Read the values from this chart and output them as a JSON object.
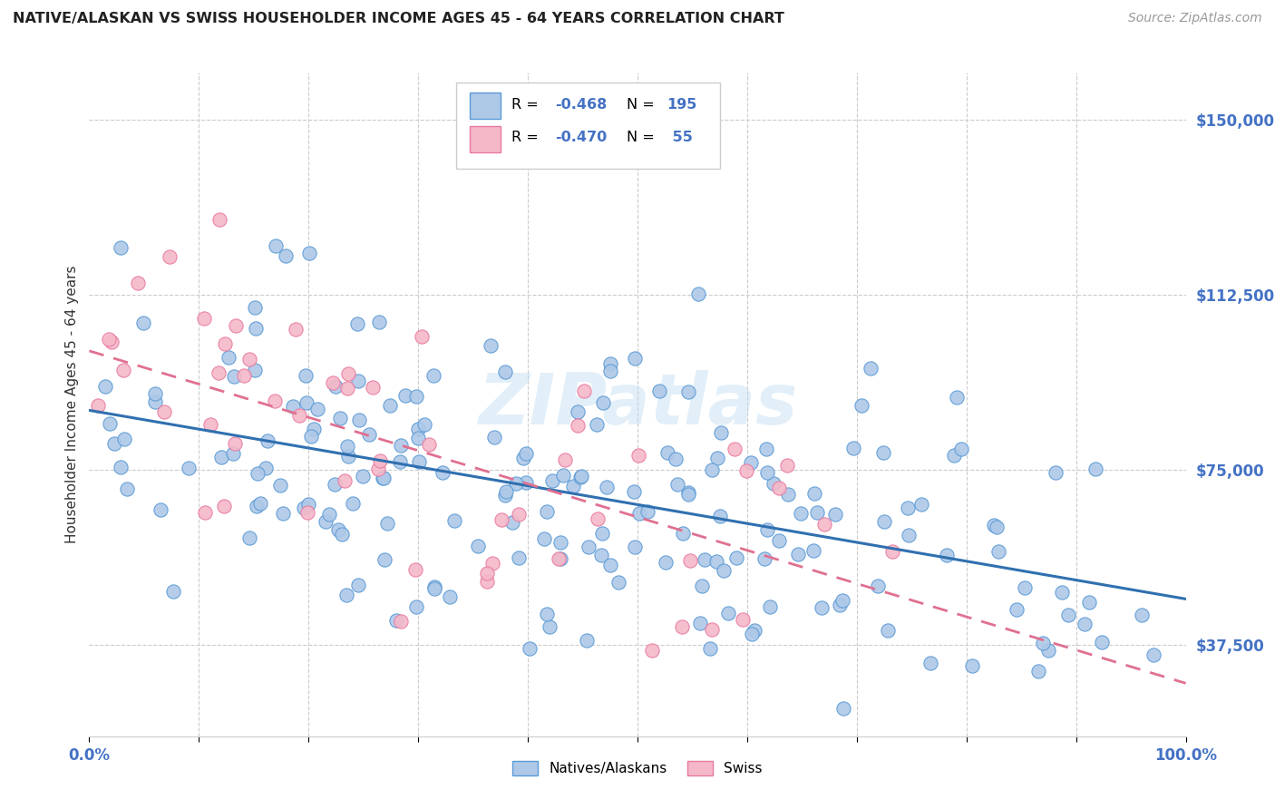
{
  "title": "NATIVE/ALASKAN VS SWISS HOUSEHOLDER INCOME AGES 45 - 64 YEARS CORRELATION CHART",
  "source": "Source: ZipAtlas.com",
  "ylabel": "Householder Income Ages 45 - 64 years",
  "ytick_labels": [
    "$37,500",
    "$75,000",
    "$112,500",
    "$150,000"
  ],
  "ytick_values": [
    37500,
    75000,
    112500,
    150000
  ],
  "ylim": [
    18000,
    160000
  ],
  "xlim": [
    0.0,
    1.0
  ],
  "watermark": "ZIPatlas",
  "blue_color": "#aec8e8",
  "blue_edge_color": "#5b9bd5",
  "blue_line_color": "#3070b0",
  "pink_color": "#f5b8c8",
  "pink_edge_color": "#e87aa0",
  "pink_line_color": "#e07090",
  "grid_color": "#cccccc",
  "title_color": "#222222",
  "ylabel_color": "#333333",
  "tick_color": "#4472c4",
  "source_color": "#999999",
  "legend_r_color": "#4472c4",
  "n_blue": 195,
  "n_pink": 55,
  "blue_seed": 42,
  "pink_seed": 7,
  "marker_size": 120,
  "blue_intercept": 82000,
  "blue_slope": -30000,
  "pink_intercept": 100000,
  "pink_slope": -70000,
  "blue_noise": 18000,
  "pink_noise": 16000
}
